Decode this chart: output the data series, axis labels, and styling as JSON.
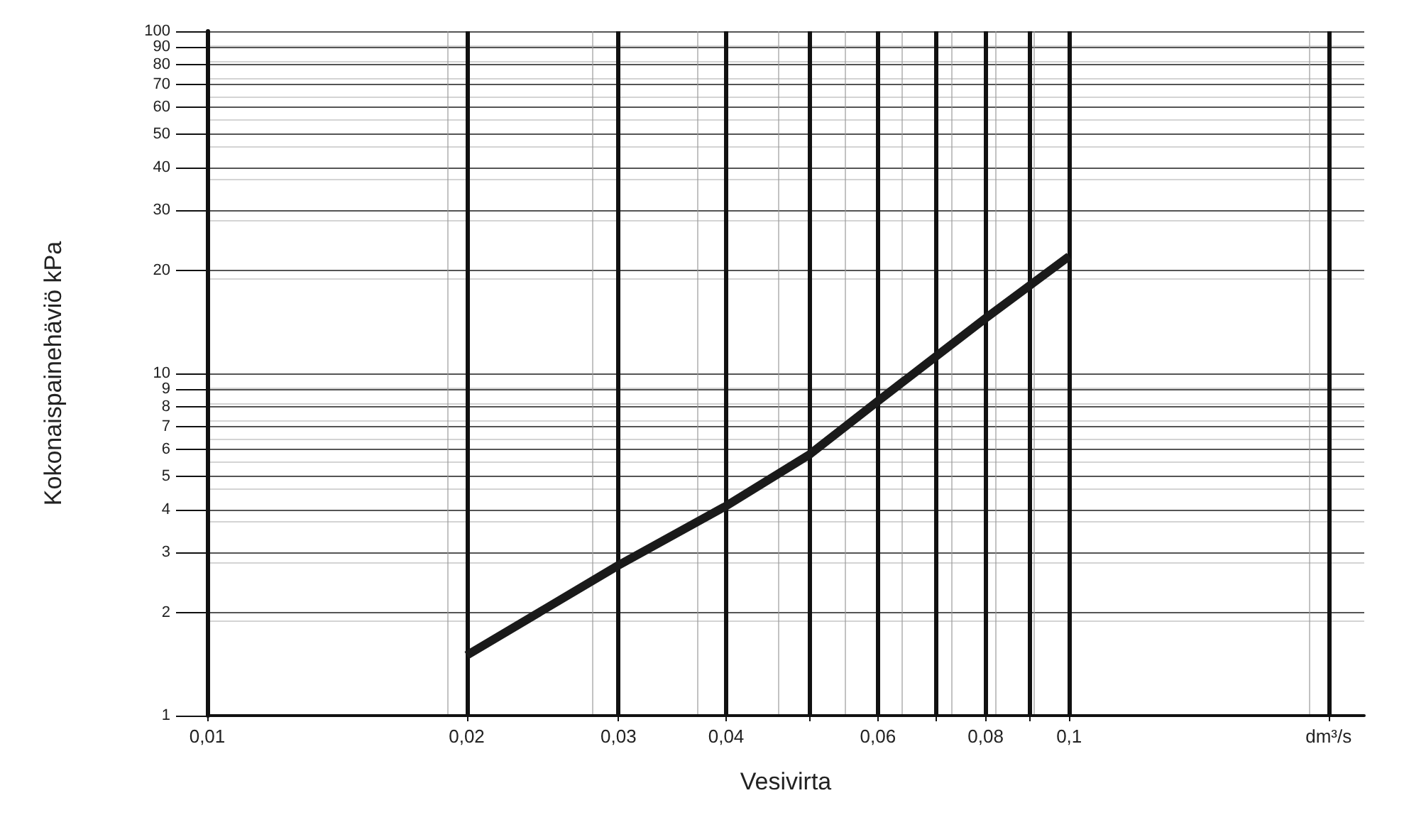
{
  "chart_data": {
    "type": "line",
    "xlabel": "Vesivirta",
    "ylabel": "Kokonaispainehäviö kPa",
    "log": "xy",
    "grid": true,
    "marker": "none",
    "line_style": "solid",
    "xlim": [
      0.01,
      0.22
    ],
    "ylim": [
      1,
      100
    ],
    "xticks": [
      {
        "value": 0.01,
        "label": "0,01"
      },
      {
        "value": 0.02,
        "label": "0,02"
      },
      {
        "value": 0.03,
        "label": "0,03"
      },
      {
        "value": 0.04,
        "label": "0,04"
      },
      {
        "value": 0.05,
        "label": null
      },
      {
        "value": 0.06,
        "label": "0,06"
      },
      {
        "value": 0.07,
        "label": null
      },
      {
        "value": 0.08,
        "label": "0,08"
      },
      {
        "value": 0.09,
        "label": null
      },
      {
        "value": 0.1,
        "label": "0,1"
      },
      {
        "value": 0.2,
        "label": "dm³/s"
      }
    ],
    "yticks": [
      1,
      2,
      3,
      4,
      5,
      6,
      7,
      8,
      9,
      10,
      20,
      30,
      40,
      50,
      60,
      70,
      80,
      90,
      100
    ],
    "series": [
      {
        "color": "#1a1a1a",
        "x": [
          0.02,
          0.03,
          0.04,
          0.05,
          0.06,
          0.08,
          0.1
        ],
        "values": [
          1.5,
          2.75,
          4.1,
          5.8,
          8.3,
          14.5,
          22
        ]
      }
    ]
  }
}
